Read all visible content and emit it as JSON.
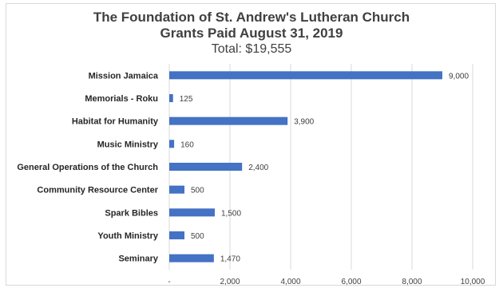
{
  "chart_data": {
    "type": "bar",
    "orientation": "horizontal",
    "title": "The Foundation of St. Andrew's Lutheran Church",
    "subtitle": "Grants Paid August 31, 2019",
    "subtitle2": "Total: $19,555",
    "categories": [
      "Mission Jamaica",
      "Memorials - Roku",
      "Habitat for Humanity",
      "Music Ministry",
      "General Operations of the Church",
      "Community Resource Center",
      "Spark Bibles",
      "Youth Ministry",
      "Seminary"
    ],
    "values": [
      9000,
      125,
      3900,
      160,
      2400,
      500,
      1500,
      500,
      1470
    ],
    "value_labels": [
      "9,000",
      "125",
      "3,900",
      "160",
      "2,400",
      "500",
      "1,500",
      "500",
      "1,470"
    ],
    "xlim": [
      0,
      10000
    ],
    "x_ticks": [
      0,
      2000,
      4000,
      6000,
      8000,
      10000
    ],
    "x_tick_labels": [
      "-",
      "2,000",
      "4,000",
      "6,000",
      "8,000",
      "10,000"
    ],
    "grid": true,
    "bar_color": "#4472c4",
    "grid_color": "#d9d9d9"
  }
}
